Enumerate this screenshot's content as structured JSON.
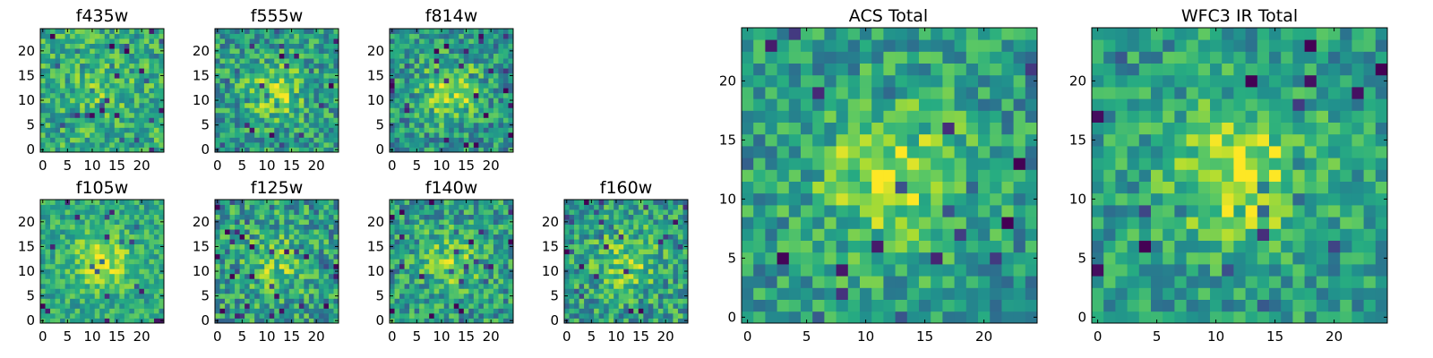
{
  "chart_data": [
    {
      "type": "heatmap",
      "title": "f435w",
      "grid_size": 25,
      "xticks": [
        0,
        5,
        10,
        15,
        20
      ],
      "yticks": [
        0,
        5,
        10,
        15,
        20
      ],
      "colormap": "viridis",
      "seed": 11,
      "center_strength": 0.12,
      "background": 0.62,
      "noise": 0.22
    },
    {
      "type": "heatmap",
      "title": "f555w",
      "grid_size": 25,
      "xticks": [
        0,
        5,
        10,
        15,
        20
      ],
      "yticks": [
        0,
        5,
        10,
        15,
        20
      ],
      "colormap": "viridis",
      "seed": 23,
      "center_strength": 0.28,
      "background": 0.55,
      "noise": 0.24
    },
    {
      "type": "heatmap",
      "title": "f814w",
      "grid_size": 25,
      "xticks": [
        0,
        5,
        10,
        15,
        20
      ],
      "yticks": [
        0,
        5,
        10,
        15,
        20
      ],
      "colormap": "viridis",
      "seed": 37,
      "center_strength": 0.35,
      "background": 0.52,
      "noise": 0.24
    },
    {
      "type": "heatmap",
      "title": "f105w",
      "grid_size": 25,
      "xticks": [
        0,
        5,
        10,
        15,
        20
      ],
      "yticks": [
        0,
        5,
        10,
        15,
        20
      ],
      "colormap": "viridis",
      "seed": 41,
      "center_strength": 0.3,
      "background": 0.6,
      "noise": 0.18
    },
    {
      "type": "heatmap",
      "title": "f125w",
      "grid_size": 25,
      "xticks": [
        0,
        5,
        10,
        15,
        20
      ],
      "yticks": [
        0,
        5,
        10,
        15,
        20
      ],
      "colormap": "viridis",
      "seed": 53,
      "center_strength": 0.22,
      "background": 0.55,
      "noise": 0.26
    },
    {
      "type": "heatmap",
      "title": "f140w",
      "grid_size": 25,
      "xticks": [
        0,
        5,
        10,
        15,
        20
      ],
      "yticks": [
        0,
        5,
        10,
        15,
        20
      ],
      "colormap": "viridis",
      "seed": 67,
      "center_strength": 0.26,
      "background": 0.55,
      "noise": 0.24
    },
    {
      "type": "heatmap",
      "title": "f160w",
      "grid_size": 25,
      "xticks": [
        0,
        5,
        10,
        15,
        20
      ],
      "yticks": [
        0,
        5,
        10,
        15,
        20
      ],
      "colormap": "viridis",
      "seed": 79,
      "center_strength": 0.24,
      "background": 0.56,
      "noise": 0.25
    },
    {
      "type": "heatmap",
      "title": "ACS Total",
      "grid_size": 25,
      "xticks": [
        0,
        5,
        10,
        15,
        20
      ],
      "yticks": [
        0,
        5,
        10,
        15,
        20
      ],
      "colormap": "viridis",
      "seed": 97,
      "center_strength": 0.35,
      "background": 0.55,
      "noise": 0.22
    },
    {
      "type": "heatmap",
      "title": "WFC3 IR Total",
      "grid_size": 25,
      "xticks": [
        0,
        5,
        10,
        15,
        20
      ],
      "yticks": [
        0,
        5,
        10,
        15,
        20
      ],
      "colormap": "viridis",
      "seed": 113,
      "center_strength": 0.38,
      "background": 0.55,
      "noise": 0.2
    }
  ]
}
